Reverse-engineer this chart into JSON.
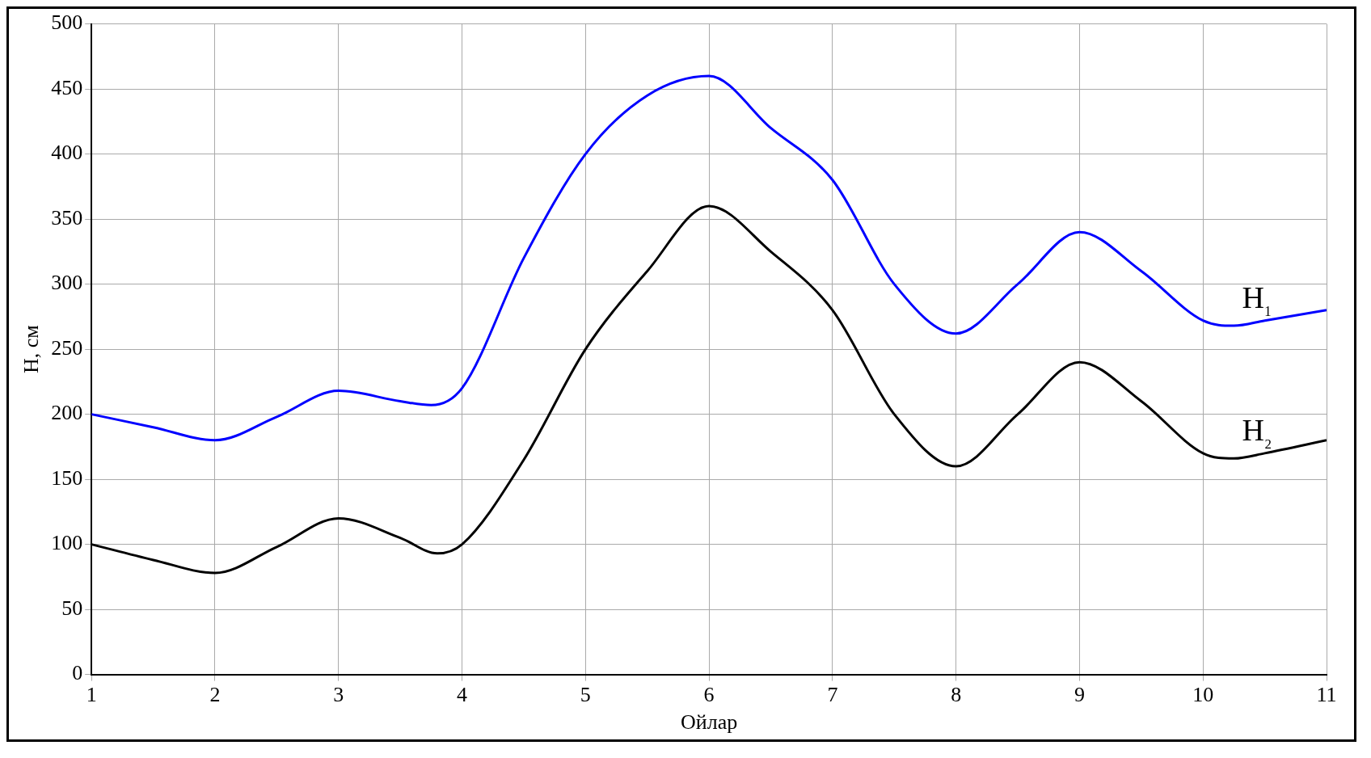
{
  "chart_data": {
    "type": "line",
    "xlabel": "Ойлар",
    "ylabel": "H, см",
    "xlim": [
      1,
      11
    ],
    "xticks": [
      1,
      2,
      3,
      4,
      5,
      6,
      7,
      8,
      9,
      10,
      11
    ],
    "ylim": [
      0,
      500
    ],
    "yticks": [
      0,
      50,
      100,
      150,
      200,
      250,
      300,
      350,
      400,
      450,
      500
    ],
    "grid": true,
    "legend": false,
    "marker": "none",
    "line_style": "solid",
    "series": [
      {
        "name": "H₁",
        "color": "#0000ff",
        "x": [
          1,
          1.5,
          2,
          2.5,
          3,
          3.5,
          3.75,
          4,
          4.5,
          5,
          5.5,
          6,
          6.5,
          7,
          7.5,
          8,
          8.5,
          9,
          9.5,
          10,
          10.25,
          10.5,
          11
        ],
        "values": [
          200,
          190,
          180,
          198,
          218,
          210,
          207,
          220,
          320,
          400,
          445,
          460,
          420,
          380,
          300,
          262,
          300,
          340,
          310,
          272,
          268,
          272,
          280
        ]
      },
      {
        "name": "H₂",
        "color": "#000000",
        "x": [
          1,
          1.5,
          2,
          2.5,
          3,
          3.5,
          3.8,
          4,
          4.5,
          5,
          5.5,
          6,
          6.5,
          7,
          7.5,
          8,
          8.5,
          9,
          9.5,
          10,
          10.25,
          10.5,
          11
        ],
        "values": [
          100,
          88,
          78,
          98,
          120,
          105,
          93,
          100,
          165,
          250,
          310,
          360,
          325,
          280,
          200,
          160,
          200,
          240,
          210,
          170,
          166,
          170,
          180
        ]
      }
    ]
  }
}
